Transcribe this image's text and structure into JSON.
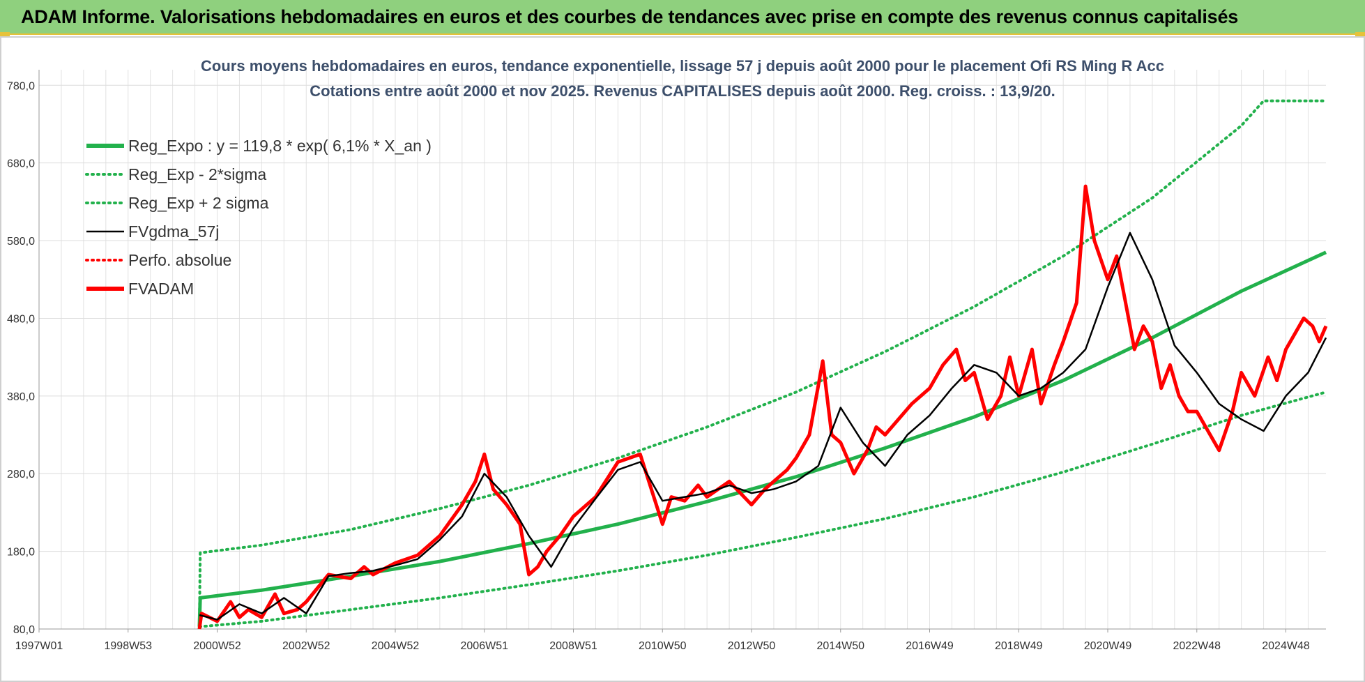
{
  "header": {
    "title": "ADAM Informe. Valorisations hebdomadaires en euros et des courbes de tendances avec prise en compte des revenus connus capitalisés"
  },
  "chart_data": {
    "type": "line",
    "title": "Cours moyens hebdomadaires en euros, tendance exponentielle, lissage 57 j depuis août 2000 pour le placement Ofi RS Ming R Acc",
    "subtitle": "Cotations entre août 2000 et nov 2025. Revenus CAPITALISES depuis août 2000. Reg. croiss. : 13,9/20.",
    "xlabel": "",
    "ylabel": "",
    "ylim": [
      80,
      800
    ],
    "xlim": [
      1997.0,
      2025.9
    ],
    "y_ticks": [
      "80,0",
      "180,0",
      "280,0",
      "380,0",
      "480,0",
      "580,0",
      "680,0",
      "780,0"
    ],
    "y_tick_values": [
      80,
      180,
      280,
      380,
      480,
      580,
      680,
      780
    ],
    "x_ticks": [
      "1997W01",
      "1998W53",
      "2000W52",
      "2002W52",
      "2004W52",
      "2006W51",
      "2008W51",
      "2010W50",
      "2012W50",
      "2014W50",
      "2016W49",
      "2018W49",
      "2020W49",
      "2022W48",
      "2024W48"
    ],
    "x_tick_values": [
      1997.0,
      1999.0,
      2001.0,
      2003.0,
      2005.0,
      2007.0,
      2009.0,
      2011.0,
      2013.0,
      2015.0,
      2017.0,
      2019.0,
      2021.0,
      2023.0,
      2025.0
    ],
    "grid": true,
    "legend": "top-left",
    "series": [
      {
        "name": "Reg_Expo : y = 119,8 * exp( 6,1% *  X_an )",
        "color": "#22b14c",
        "style": "solid-thick",
        "x": [
          2000.6,
          2000.62,
          2002.0,
          2004.0,
          2006.0,
          2008.0,
          2010.0,
          2012.0,
          2014.0,
          2016.0,
          2018.0,
          2020.0,
          2022.0,
          2024.0,
          2025.9
        ],
        "values": [
          83,
          120,
          130,
          148,
          167,
          190,
          215,
          244,
          276,
          313,
          353,
          400,
          455,
          515,
          565
        ]
      },
      {
        "name": "Reg_Exp - 2*sigma",
        "color": "#22b14c",
        "style": "dotted",
        "x": [
          2000.6,
          2002.0,
          2004.0,
          2006.0,
          2008.0,
          2010.0,
          2012.0,
          2014.0,
          2016.0,
          2018.0,
          2020.0,
          2022.0,
          2024.0,
          2025.9
        ],
        "values": [
          83,
          90,
          105,
          120,
          137,
          155,
          175,
          198,
          222,
          250,
          282,
          318,
          355,
          385
        ]
      },
      {
        "name": "Reg_Exp + 2 sigma",
        "color": "#22b14c",
        "style": "dotted",
        "x": [
          2000.6,
          2000.62,
          2002.0,
          2004.0,
          2006.0,
          2008.0,
          2010.0,
          2012.0,
          2014.0,
          2016.0,
          2018.0,
          2020.0,
          2022.0,
          2024.0,
          2024.5,
          2025.9
        ],
        "values": [
          83,
          178,
          188,
          208,
          235,
          265,
          300,
          340,
          385,
          437,
          495,
          560,
          635,
          728,
          760,
          760
        ]
      },
      {
        "name": "FVgdma_57j",
        "color": "#000000",
        "style": "solid",
        "x": [
          2000.6,
          2001.0,
          2001.5,
          2002.0,
          2002.5,
          2003.0,
          2003.5,
          2004.0,
          2004.5,
          2005.0,
          2005.5,
          2006.0,
          2006.5,
          2007.0,
          2007.5,
          2008.0,
          2008.5,
          2009.0,
          2009.5,
          2010.0,
          2010.5,
          2011.0,
          2011.5,
          2012.0,
          2012.5,
          2013.0,
          2013.5,
          2014.0,
          2014.5,
          2015.0,
          2015.5,
          2016.0,
          2016.5,
          2017.0,
          2017.5,
          2018.0,
          2018.5,
          2019.0,
          2019.5,
          2020.0,
          2020.5,
          2021.0,
          2021.5,
          2022.0,
          2022.5,
          2023.0,
          2023.5,
          2024.0,
          2024.5,
          2025.0,
          2025.5,
          2025.9
        ],
        "values": [
          98,
          92,
          112,
          100,
          120,
          100,
          148,
          152,
          155,
          162,
          170,
          195,
          225,
          280,
          250,
          200,
          160,
          210,
          248,
          285,
          295,
          245,
          250,
          255,
          265,
          255,
          260,
          270,
          290,
          365,
          320,
          290,
          330,
          355,
          390,
          420,
          410,
          380,
          390,
          410,
          440,
          520,
          590,
          530,
          445,
          410,
          370,
          350,
          335,
          380,
          410,
          455
        ]
      },
      {
        "name": "Perfo. absolue",
        "color": "#ff0000",
        "style": "dotted",
        "x": [],
        "values": []
      },
      {
        "name": "FVADAM",
        "color": "#ff0000",
        "style": "solid-thick",
        "x": [
          2000.6,
          2000.65,
          2001.0,
          2001.3,
          2001.5,
          2001.7,
          2002.0,
          2002.3,
          2002.5,
          2002.8,
          2003.0,
          2003.5,
          2004.0,
          2004.3,
          2004.5,
          2005.0,
          2005.5,
          2006.0,
          2006.5,
          2006.8,
          2007.0,
          2007.2,
          2007.5,
          2007.8,
          2008.0,
          2008.2,
          2008.4,
          2008.7,
          2009.0,
          2009.5,
          2010.0,
          2010.5,
          2011.0,
          2011.2,
          2011.5,
          2011.8,
          2012.0,
          2012.5,
          2013.0,
          2013.3,
          2013.5,
          2013.8,
          2014.0,
          2014.3,
          2014.6,
          2014.8,
          2015.0,
          2015.3,
          2015.6,
          2015.8,
          2016.0,
          2016.3,
          2016.6,
          2017.0,
          2017.3,
          2017.6,
          2017.8,
          2018.0,
          2018.3,
          2018.6,
          2018.8,
          2019.0,
          2019.3,
          2019.5,
          2019.8,
          2020.0,
          2020.3,
          2020.5,
          2020.7,
          2021.0,
          2021.2,
          2021.4,
          2021.6,
          2021.8,
          2022.0,
          2022.2,
          2022.4,
          2022.6,
          2022.8,
          2023.0,
          2023.3,
          2023.5,
          2023.8,
          2024.0,
          2024.3,
          2024.6,
          2024.8,
          2025.0,
          2025.2,
          2025.4,
          2025.6,
          2025.75,
          2025.9
        ],
        "values": [
          80,
          100,
          90,
          115,
          95,
          105,
          95,
          125,
          100,
          105,
          115,
          150,
          145,
          160,
          150,
          165,
          175,
          200,
          240,
          270,
          305,
          260,
          240,
          215,
          150,
          160,
          180,
          200,
          225,
          250,
          295,
          305,
          215,
          250,
          245,
          265,
          250,
          270,
          240,
          260,
          270,
          285,
          300,
          330,
          425,
          330,
          320,
          280,
          310,
          340,
          330,
          350,
          370,
          390,
          420,
          440,
          400,
          410,
          350,
          380,
          430,
          380,
          440,
          370,
          420,
          450,
          500,
          650,
          580,
          530,
          560,
          500,
          440,
          470,
          450,
          390,
          420,
          380,
          360,
          360,
          330,
          310,
          360,
          410,
          380,
          430,
          400,
          440,
          460,
          480,
          470,
          450,
          470
        ]
      }
    ]
  }
}
